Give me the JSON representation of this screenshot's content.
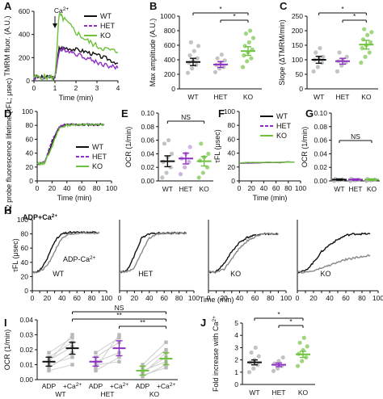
{
  "colors": {
    "WT": "#111111",
    "HET": "#8e2fc4",
    "KO": "#6cc23a",
    "ADP_trace": "#111111",
    "ADPCa_trace": "#888888",
    "dots": "#b8b8b8",
    "ko_dot": "#8fcf6a",
    "het_dot": "#c9a6de"
  },
  "panel_labels": [
    "A",
    "B",
    "C",
    "D",
    "E",
    "F",
    "G",
    "H",
    "I",
    "J"
  ],
  "chart_data": [
    {
      "id": "A",
      "type": "line",
      "title": "",
      "xlabel": "Time (min)",
      "ylabel": "TMRM fluor. (A.U.)",
      "xlim": [
        0,
        4
      ],
      "xticks": [
        0,
        1,
        2,
        3,
        4
      ],
      "ylim": [
        0,
        600
      ],
      "yticks": [
        0,
        200,
        400,
        600
      ],
      "annotation": "Ca2+",
      "annotation_x": 1.0,
      "legend": [
        "WT",
        "HET",
        "KO"
      ],
      "legend_position": "top-right",
      "series": [
        {
          "name": "WT",
          "x": [
            0,
            0.5,
            1.0,
            1.2,
            1.5,
            2.0,
            2.5,
            3.0,
            3.5,
            4.0
          ],
          "y": [
            30,
            30,
            30,
            280,
            285,
            270,
            250,
            220,
            190,
            150
          ]
        },
        {
          "name": "HET",
          "x": [
            0,
            0.5,
            1.0,
            1.2,
            1.5,
            2.0,
            2.5,
            3.0,
            3.5,
            4.0
          ],
          "y": [
            30,
            30,
            30,
            260,
            270,
            235,
            200,
            160,
            130,
            110
          ]
        },
        {
          "name": "KO",
          "x": [
            0,
            0.5,
            1.0,
            1.2,
            1.5,
            2.0,
            2.5,
            3.0,
            3.5,
            4.0
          ],
          "y": [
            30,
            30,
            30,
            570,
            520,
            420,
            350,
            300,
            270,
            250
          ]
        }
      ]
    },
    {
      "id": "B",
      "type": "scatter",
      "ylabel": "Max amplitude (A.U.)",
      "categories": [
        "WT",
        "HET",
        "KO"
      ],
      "ylim": [
        0,
        1000
      ],
      "yticks": [
        0,
        200,
        400,
        600,
        800,
        1000
      ],
      "means": [
        370,
        335,
        520
      ],
      "sem": [
        50,
        40,
        60
      ],
      "points": [
        [
          220,
          280,
          330,
          360,
          390,
          420,
          460,
          520,
          590,
          640
        ],
        [
          230,
          280,
          300,
          330,
          360,
          390,
          420,
          470
        ],
        [
          300,
          380,
          420,
          460,
          500,
          540,
          590,
          640,
          700,
          760,
          800
        ]
      ],
      "significance": [
        {
          "pair": [
            "WT",
            "KO"
          ],
          "label": "*"
        },
        {
          "pair": [
            "HET",
            "KO"
          ],
          "label": "*"
        }
      ]
    },
    {
      "id": "C",
      "type": "scatter",
      "ylabel": "Slope (ΔTMRM/min)",
      "categories": [
        "WT",
        "HET",
        "KO"
      ],
      "ylim": [
        0,
        250
      ],
      "yticks": [
        0,
        50,
        100,
        150,
        200,
        250
      ],
      "means": [
        100,
        95,
        152
      ],
      "sem": [
        12,
        10,
        15
      ],
      "points": [
        [
          60,
          75,
          90,
          100,
          105,
          110,
          125,
          140
        ],
        [
          60,
          80,
          90,
          95,
          100,
          110,
          125
        ],
        [
          90,
          110,
          125,
          140,
          150,
          160,
          170,
          185,
          195,
          205
        ]
      ],
      "significance": [
        {
          "pair": [
            "WT",
            "KO"
          ],
          "label": "*"
        },
        {
          "pair": [
            "HET",
            "KO"
          ],
          "label": "*"
        }
      ]
    },
    {
      "id": "D",
      "type": "line",
      "xlabel": "Time (min)",
      "ylabel": "O2 probe fluorescence lifetime (τFL; μsec)",
      "xlim": [
        0,
        100
      ],
      "xticks": [
        0,
        20,
        40,
        60,
        80,
        100
      ],
      "ylim": [
        0,
        100
      ],
      "yticks": [
        0,
        20,
        40,
        60,
        80,
        100
      ],
      "legend": [
        "WT",
        "HET",
        "KO"
      ],
      "legend_position": "bottom-right",
      "series": [
        {
          "name": "WT",
          "x": [
            0,
            5,
            10,
            20,
            30,
            40,
            50,
            60,
            70,
            80,
            90
          ],
          "y": [
            25,
            25,
            26,
            55,
            78,
            81,
            81,
            81,
            81,
            81,
            81
          ]
        },
        {
          "name": "HET",
          "x": [
            0,
            5,
            10,
            20,
            30,
            40,
            50,
            60,
            70,
            80,
            90
          ],
          "y": [
            25,
            25,
            27,
            58,
            79,
            81,
            81,
            81,
            81,
            81,
            81
          ]
        },
        {
          "name": "KO",
          "x": [
            0,
            5,
            10,
            20,
            30,
            40,
            50,
            60,
            70,
            80,
            90
          ],
          "y": [
            25,
            25,
            26,
            50,
            76,
            80,
            81,
            81,
            81,
            81,
            81
          ]
        }
      ]
    },
    {
      "id": "E",
      "type": "scatter",
      "ylabel": "OCR (1/min)",
      "categories": [
        "WT",
        "HET",
        "KO"
      ],
      "ylim": [
        0,
        0.1
      ],
      "yticks": [
        0.0,
        0.02,
        0.04,
        0.06,
        0.08,
        0.1
      ],
      "means": [
        0.029,
        0.033,
        0.029
      ],
      "sem": [
        0.008,
        0.008,
        0.007
      ],
      "points": [
        [
          0.005,
          0.012,
          0.02,
          0.028,
          0.035,
          0.04,
          0.055,
          0.06
        ],
        [
          0.01,
          0.02,
          0.028,
          0.033,
          0.04,
          0.05
        ],
        [
          0.005,
          0.012,
          0.02,
          0.03,
          0.035,
          0.04,
          0.055
        ]
      ],
      "significance": [
        {
          "pair": [
            "WT",
            "KO"
          ],
          "label": "NS"
        }
      ]
    },
    {
      "id": "F",
      "type": "line",
      "xlabel": "Time (min)",
      "ylabel": "τFL (μsec)",
      "xlim": [
        0,
        100
      ],
      "xticks": [
        0,
        20,
        40,
        60,
        80,
        100
      ],
      "ylim": [
        0,
        100
      ],
      "yticks": [
        0,
        20,
        40,
        60,
        80,
        100
      ],
      "legend": [
        "WT",
        "HET",
        "KO"
      ],
      "legend_position": "top-right",
      "series": [
        {
          "name": "WT",
          "x": [
            0,
            90
          ],
          "y": [
            26,
            27
          ]
        },
        {
          "name": "HET",
          "x": [
            0,
            90
          ],
          "y": [
            26,
            27
          ]
        },
        {
          "name": "KO",
          "x": [
            0,
            90
          ],
          "y": [
            26,
            27
          ]
        }
      ]
    },
    {
      "id": "G",
      "type": "scatter",
      "ylabel": "OCR (1/min)",
      "categories": [
        "WT",
        "HET",
        "KO"
      ],
      "ylim": [
        0,
        0.1
      ],
      "yticks": [
        0.0,
        0.02,
        0.04,
        0.06,
        0.08,
        0.1
      ],
      "means": [
        0.002,
        0.002,
        0.002
      ],
      "sem": [
        0.001,
        0.001,
        0.001
      ],
      "points": [
        [
          0.0,
          0.001,
          0.002,
          0.003
        ],
        [
          0.0,
          0.001,
          0.002,
          0.003
        ],
        [
          0.0,
          0.001,
          0.002,
          0.003
        ]
      ],
      "significance": [
        {
          "pair": [
            "WT",
            "KO"
          ],
          "label": "NS"
        }
      ]
    },
    {
      "id": "H",
      "type": "line",
      "ylabel": "τFL (μsec)",
      "xlabel": "Time (min)",
      "xticks": [
        0,
        10,
        20,
        30,
        40,
        50,
        60,
        70,
        80,
        90,
        100
      ],
      "ylim": [
        0,
        100
      ],
      "yticks": [
        0,
        20,
        40,
        60,
        80,
        100
      ],
      "labels": {
        "adp_ca": "ADP+Ca2+",
        "adp_minus": "ADP-Ca2+"
      },
      "subpanels": [
        {
          "name": "WT",
          "xlim": [
            0,
            100
          ],
          "series": [
            {
              "name": "ADP+Ca2+",
              "x": [
                0,
                10,
                20,
                30,
                40,
                50,
                60,
                70,
                80,
                90
              ],
              "y": [
                26,
                28,
                45,
                70,
                80,
                82,
                82,
                82,
                82,
                82
              ]
            },
            {
              "name": "ADP-Ca2+",
              "x": [
                0,
                10,
                20,
                30,
                40,
                50,
                60,
                70,
                80,
                90
              ],
              "y": [
                26,
                27,
                35,
                55,
                75,
                80,
                81,
                81,
                81,
                81
              ]
            }
          ]
        },
        {
          "name": "HET",
          "xlim": [
            0,
            100
          ],
          "series": [
            {
              "name": "ADP+Ca2+",
              "x": [
                0,
                10,
                20,
                30,
                40,
                50,
                60,
                70,
                80,
                90
              ],
              "y": [
                26,
                28,
                50,
                75,
                80,
                81,
                81,
                81,
                81,
                81
              ]
            },
            {
              "name": "ADP-Ca2+",
              "x": [
                0,
                10,
                20,
                30,
                40,
                50,
                60,
                70,
                80,
                90
              ],
              "y": [
                26,
                26,
                32,
                55,
                74,
                80,
                81,
                81,
                81,
                81
              ]
            }
          ]
        },
        {
          "name": "KO",
          "xlim": [
            0,
            100
          ],
          "series": [
            {
              "name": "ADP+Ca2+",
              "x": [
                0,
                10,
                20,
                30,
                40,
                50,
                60,
                70,
                80,
                90
              ],
              "y": [
                26,
                27,
                38,
                55,
                68,
                75,
                78,
                80,
                80,
                80
              ]
            },
            {
              "name": "ADP-Ca2+",
              "x": [
                0,
                10,
                20,
                30,
                40,
                50,
                60,
                70,
                80,
                90
              ],
              "y": [
                26,
                26,
                30,
                45,
                60,
                70,
                76,
                80,
                80,
                80
              ]
            }
          ]
        },
        {
          "name": "KO",
          "xlim": [
            0,
            100
          ],
          "series": [
            {
              "name": "ADP+Ca2+",
              "x": [
                0,
                10,
                20,
                30,
                40,
                50,
                60,
                70,
                80,
                90
              ],
              "y": [
                26,
                28,
                40,
                55,
                65,
                72,
                78,
                80,
                80,
                80
              ]
            },
            {
              "name": "ADP-Ca2+",
              "x": [
                0,
                10,
                20,
                30,
                40,
                50,
                60,
                70,
                80,
                90
              ],
              "y": [
                26,
                26,
                28,
                32,
                36,
                40,
                44,
                46,
                48,
                50
              ]
            }
          ]
        }
      ]
    },
    {
      "id": "I",
      "type": "scatter",
      "ylabel": "OCR (1/min)",
      "ylim": [
        0,
        0.04
      ],
      "yticks": [
        0.0,
        0.01,
        0.02,
        0.03,
        0.04
      ],
      "groups": [
        {
          "name": "WT",
          "conditions": [
            "ADP",
            "+Ca2+"
          ],
          "means": [
            0.012,
            0.021
          ],
          "sem": [
            0.003,
            0.004
          ],
          "pairs": [
            [
              0.008,
              0.018
            ],
            [
              0.012,
              0.03
            ],
            [
              0.015,
              0.025
            ],
            [
              0.01,
              0.015
            ],
            [
              0.018,
              0.028
            ],
            [
              0.006,
              0.01
            ],
            [
              0.013,
              0.022
            ]
          ]
        },
        {
          "name": "HET",
          "conditions": [
            "ADP",
            "+Ca2+"
          ],
          "means": [
            0.012,
            0.021
          ],
          "sem": [
            0.003,
            0.005
          ],
          "pairs": [
            [
              0.008,
              0.03
            ],
            [
              0.012,
              0.018
            ],
            [
              0.015,
              0.025
            ],
            [
              0.01,
              0.012
            ],
            [
              0.018,
              0.028
            ],
            [
              0.006,
              0.015
            ]
          ]
        },
        {
          "name": "KO",
          "conditions": [
            "ADP",
            "+Ca2+"
          ],
          "means": [
            0.006,
            0.014
          ],
          "sem": [
            0.003,
            0.004
          ],
          "pairs": [
            [
              0.004,
              0.018
            ],
            [
              0.006,
              0.012
            ],
            [
              0.01,
              0.025
            ],
            [
              0.003,
              0.008
            ],
            [
              0.008,
              0.02
            ],
            [
              0.002,
              0.01
            ],
            [
              0.005,
              0.015
            ]
          ]
        }
      ],
      "significance": [
        {
          "label": "NS"
        },
        {
          "label": "**"
        },
        {
          "label": "**"
        }
      ]
    },
    {
      "id": "J",
      "type": "scatter",
      "ylabel": "Fold increase with Ca2+",
      "categories": [
        "WT",
        "HET",
        "KO"
      ],
      "ylim": [
        0,
        5
      ],
      "yticks": [
        0,
        1,
        2,
        3,
        4,
        5
      ],
      "means": [
        1.8,
        1.6,
        2.45
      ],
      "sem": [
        0.2,
        0.15,
        0.25
      ],
      "points": [
        [
          1.0,
          1.3,
          1.6,
          1.8,
          2.0,
          2.3,
          2.6,
          3.0
        ],
        [
          1.1,
          1.3,
          1.5,
          1.7,
          1.9,
          2.2
        ],
        [
          1.5,
          1.9,
          2.2,
          2.5,
          2.8,
          3.1,
          3.4,
          3.8
        ]
      ],
      "significance": [
        {
          "pair": [
            "WT",
            "KO"
          ],
          "label": "*"
        },
        {
          "pair": [
            "HET",
            "KO"
          ],
          "label": "*"
        }
      ]
    }
  ]
}
